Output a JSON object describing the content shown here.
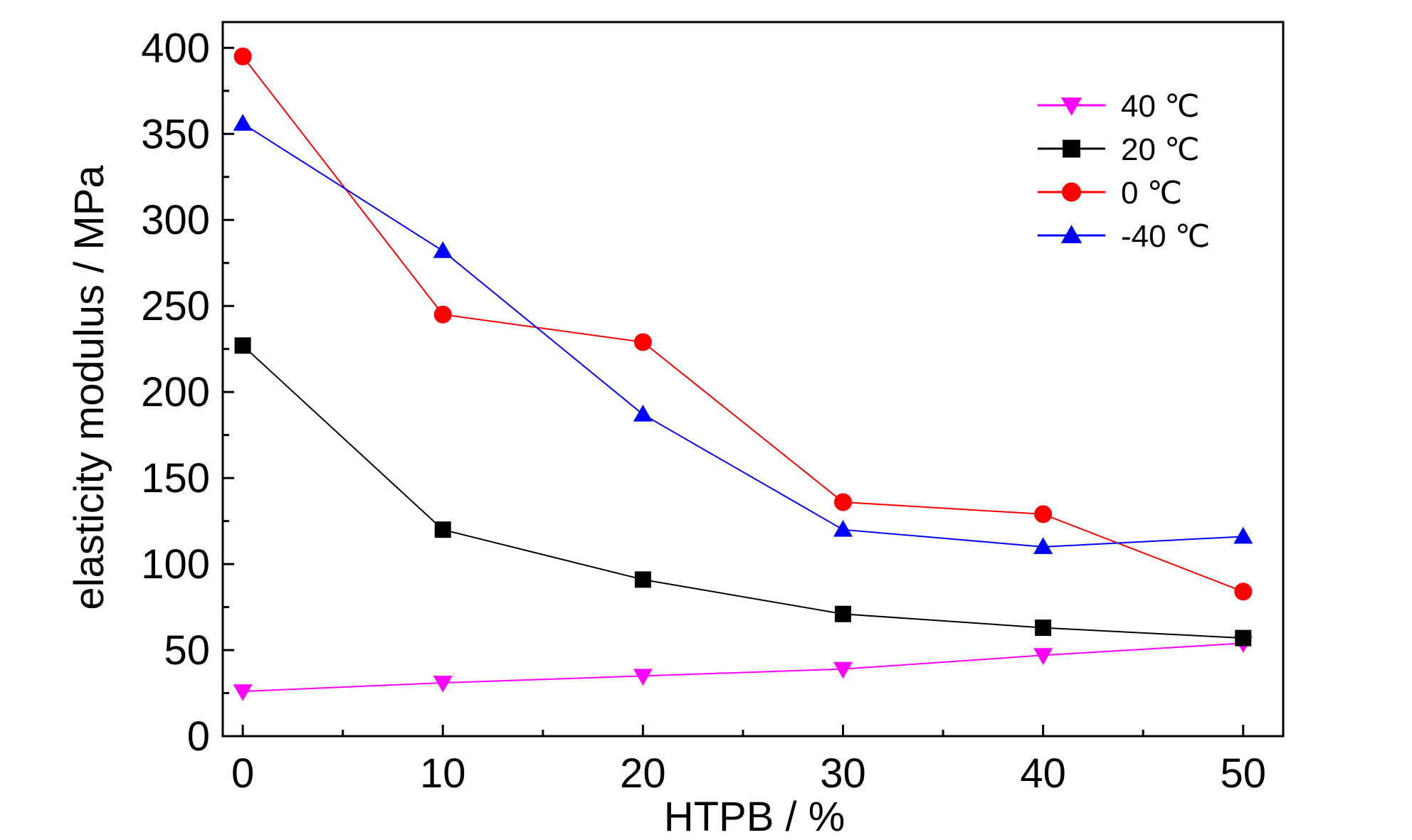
{
  "chart_data": {
    "type": "line",
    "title": "",
    "xlabel": "HTPB / %",
    "ylabel": "elasticity modulus / MPa",
    "x": [
      0,
      10,
      20,
      30,
      40,
      50
    ],
    "xlim": [
      -1,
      52
    ],
    "ylim": [
      0,
      415
    ],
    "x_ticks": [
      0,
      10,
      20,
      30,
      40,
      50
    ],
    "y_ticks": [
      0,
      50,
      100,
      150,
      200,
      250,
      300,
      350,
      400
    ],
    "grid": false,
    "legend_position": "top-right",
    "series": [
      {
        "name": "40 ℃",
        "color": "#ff00ff",
        "marker": "triangle-down",
        "values": [
          26,
          31,
          35,
          39,
          47,
          54
        ]
      },
      {
        "name": "20 ℃",
        "color": "#000000",
        "marker": "square",
        "values": [
          227,
          120,
          91,
          71,
          63,
          57
        ]
      },
      {
        "name": "0 ℃",
        "color": "#ff0000",
        "marker": "circle",
        "values": [
          395,
          245,
          229,
          136,
          129,
          84
        ]
      },
      {
        "name": "-40 ℃",
        "color": "#0000ff",
        "marker": "triangle-up",
        "values": [
          356,
          282,
          187,
          120,
          110,
          116
        ]
      }
    ]
  }
}
